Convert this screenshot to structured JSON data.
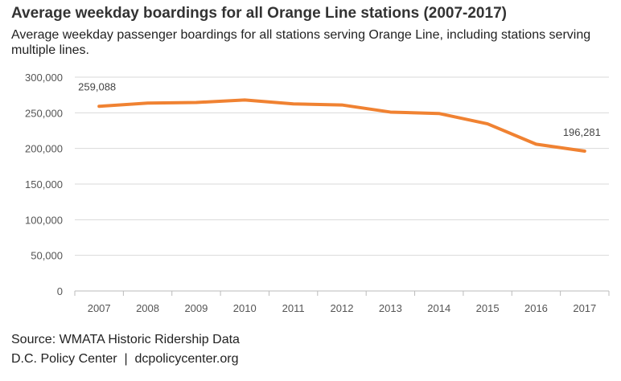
{
  "title": "Average weekday boardings for all Orange Line stations (2007-2017)",
  "subtitle": "Average weekday passenger boardings for all stations serving Orange Line, including stations serving multiple lines.",
  "source": "Source: WMATA Historic Ridership Data",
  "credit": "D.C. Policy Center  |  dcpolicycenter.org",
  "chart_data": {
    "type": "line",
    "categories": [
      "2007",
      "2008",
      "2009",
      "2010",
      "2011",
      "2012",
      "2013",
      "2014",
      "2015",
      "2016",
      "2017"
    ],
    "series": [
      {
        "values": [
          259088,
          263600,
          264500,
          268000,
          262500,
          261000,
          251000,
          249000,
          234500,
          206000,
          196281
        ],
        "color": "#f08232"
      }
    ],
    "data_labels": [
      {
        "index": 0,
        "text": "259,088"
      },
      {
        "index": 10,
        "text": "196,281"
      }
    ],
    "yticks": [
      0,
      50000,
      100000,
      150000,
      200000,
      250000,
      300000
    ],
    "ytick_labels": [
      "0",
      "50,000",
      "100,000",
      "150,000",
      "200,000",
      "250,000",
      "300,000"
    ],
    "ylim": [
      0,
      300000
    ],
    "grid": true
  }
}
